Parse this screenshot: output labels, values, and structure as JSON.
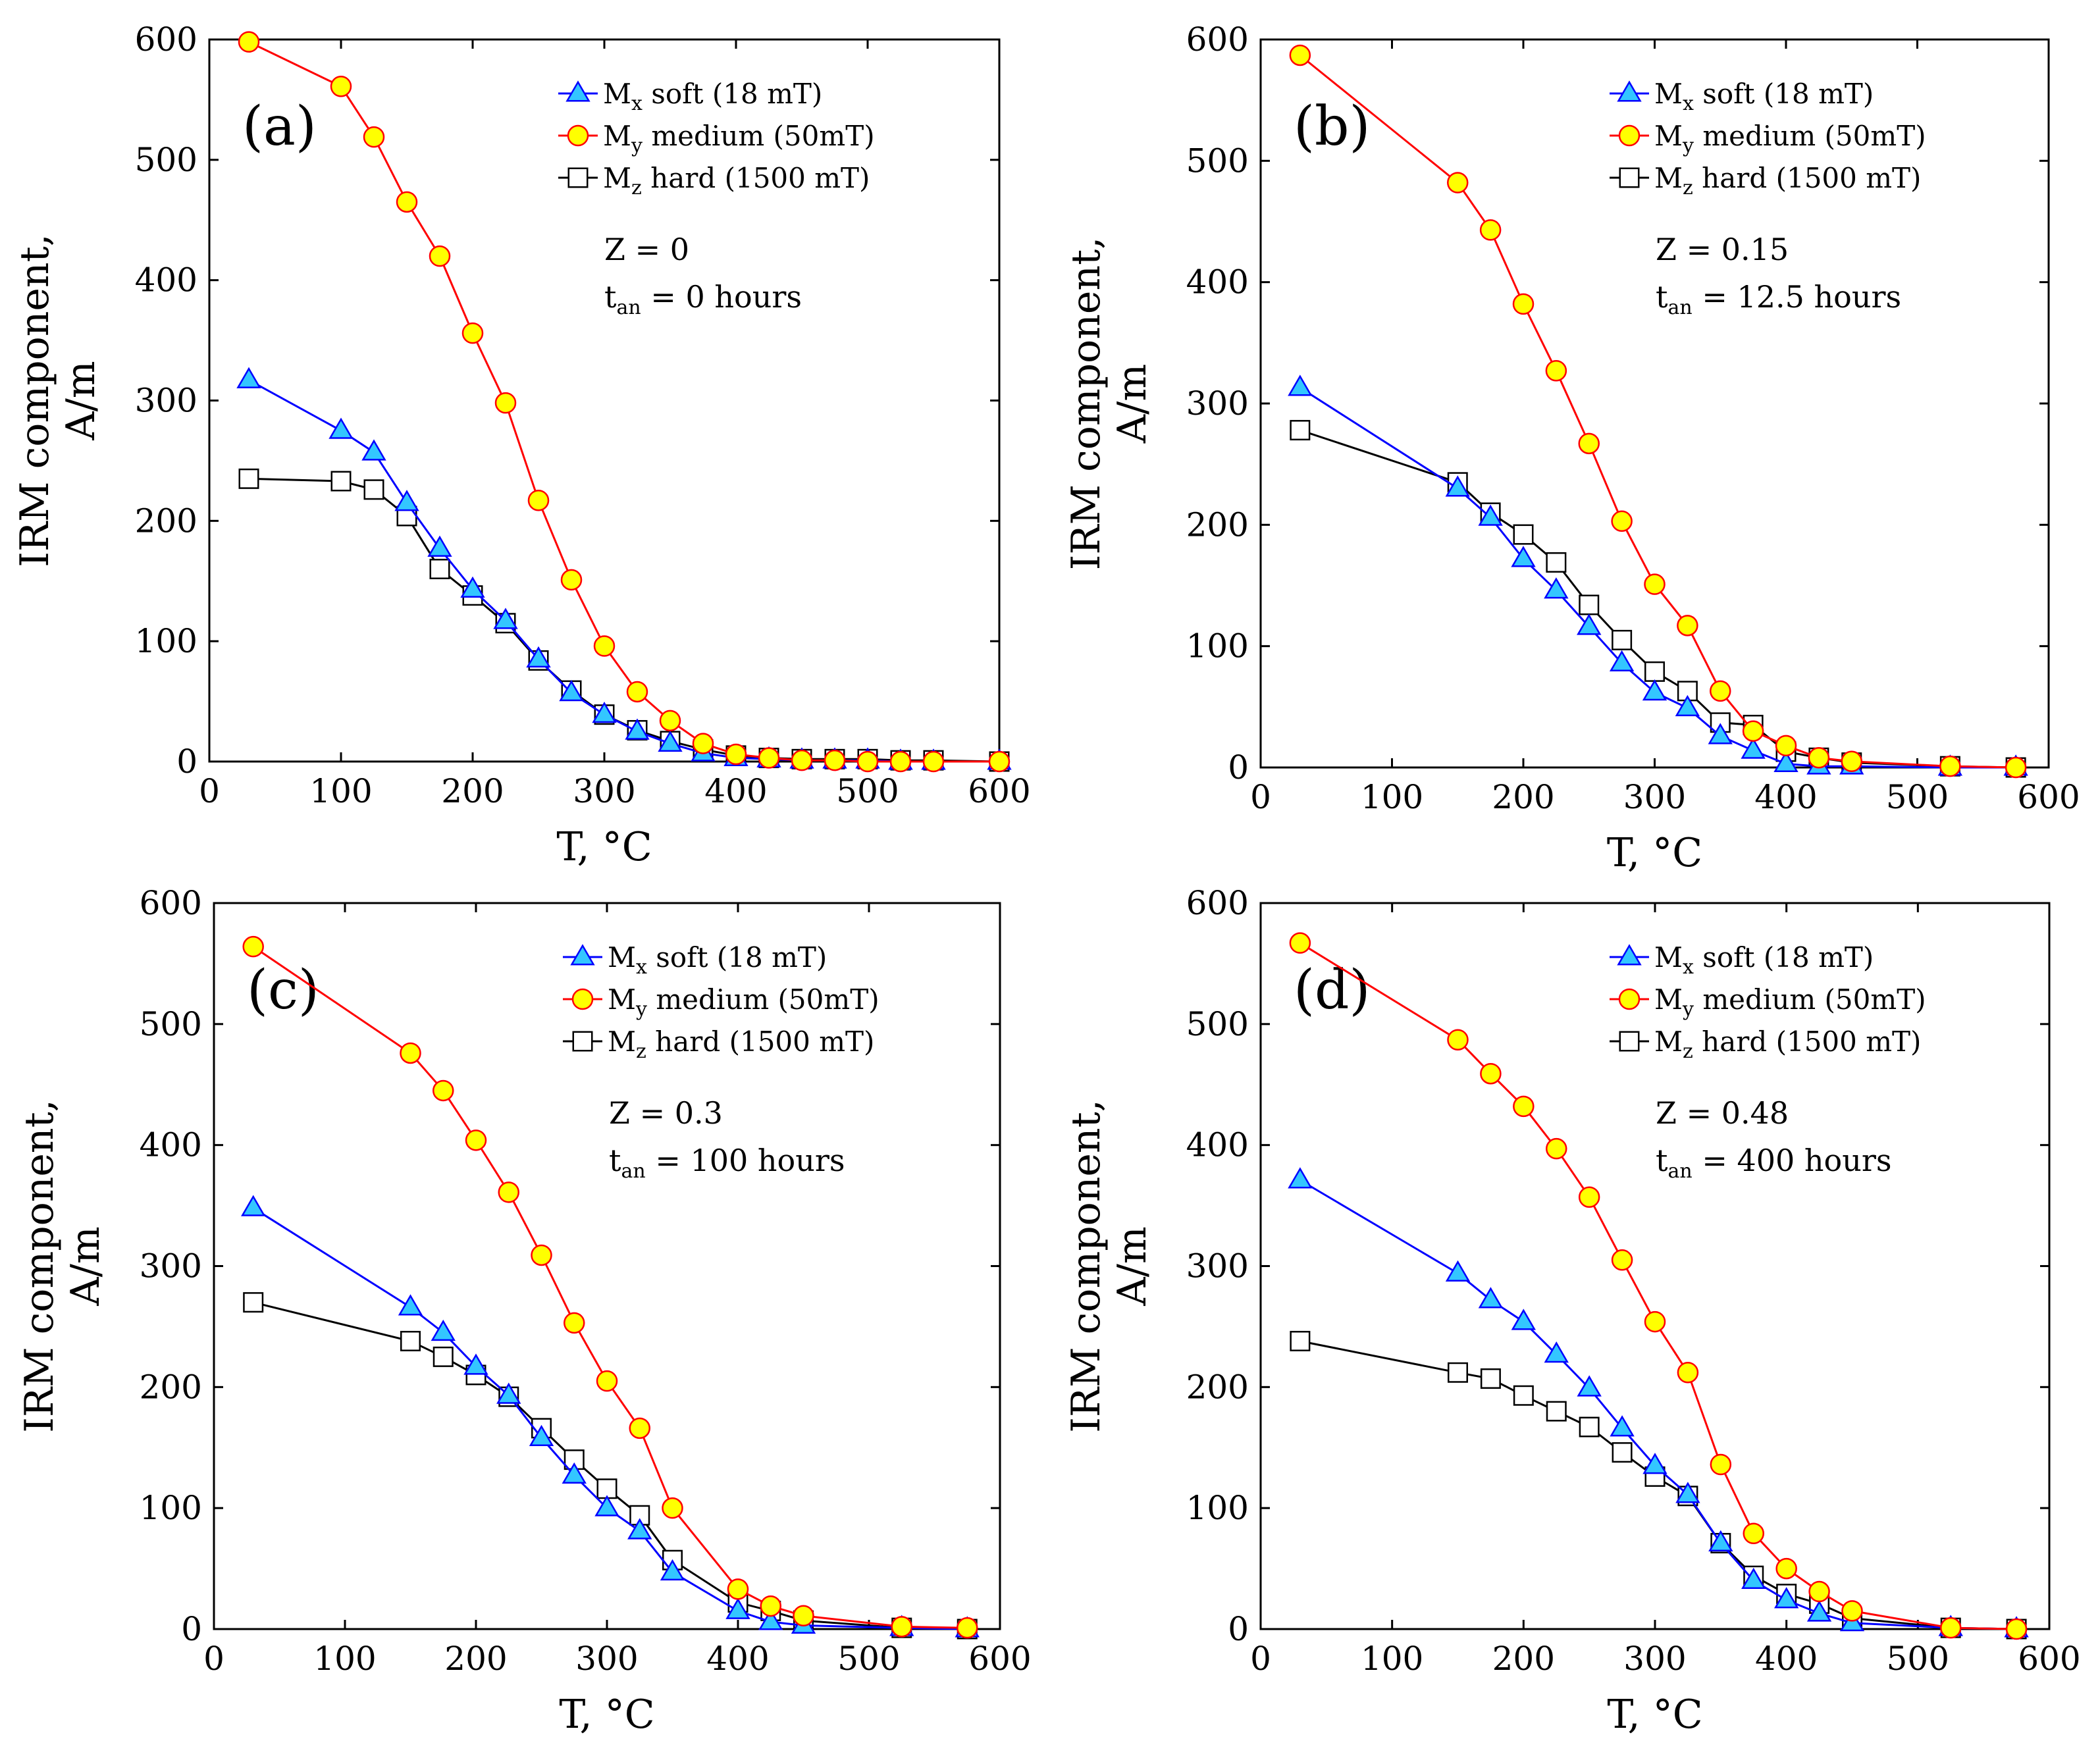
{
  "chart_data": [
    {
      "type": "line",
      "panel_label": "(a)",
      "xlabel": "T, °C",
      "ylabel_line1": "IRM component,",
      "ylabel_line2": "A/m",
      "xlim": [
        0,
        600
      ],
      "ylim": [
        0,
        600
      ],
      "xticks": [
        0,
        100,
        200,
        300,
        400,
        500,
        600
      ],
      "yticks": [
        0,
        100,
        200,
        300,
        400,
        500,
        600
      ],
      "annotation": {
        "z_text": "Z = 0",
        "t_sym": "t",
        "t_sub": "an",
        "t_rest": " = 0 hours"
      },
      "legend_position": "top-right",
      "series": [
        {
          "name": "soft",
          "sym": "M",
          "sub": "x",
          "legend_rest": " soft (18 mT)",
          "marker": "triangle",
          "x": [
            30,
            100,
            125,
            150,
            175,
            200,
            225,
            250,
            275,
            300,
            325,
            350,
            375,
            400,
            425,
            450,
            475,
            500,
            525,
            550,
            600
          ],
          "y": [
            317,
            275,
            257,
            215,
            177,
            143,
            117,
            85,
            57,
            39,
            25,
            15,
            7,
            3,
            2,
            1,
            1,
            1,
            0,
            0,
            0
          ]
        },
        {
          "name": "medium",
          "sym": "M",
          "sub": "y",
          "legend_rest": " medium (50mT)",
          "marker": "circle",
          "x": [
            30,
            100,
            125,
            150,
            175,
            200,
            225,
            250,
            275,
            300,
            325,
            350,
            375,
            400,
            425,
            450,
            475,
            500,
            525,
            550,
            600
          ],
          "y": [
            598,
            561,
            519,
            465,
            420,
            356,
            298,
            217,
            151,
            96,
            58,
            34,
            15,
            6,
            3,
            1,
            1,
            0,
            0,
            0,
            0
          ]
        },
        {
          "name": "hard",
          "sym": "M",
          "sub": "z",
          "legend_rest": " hard (1500 mT)",
          "marker": "square",
          "x": [
            30,
            100,
            125,
            150,
            175,
            200,
            225,
            250,
            275,
            300,
            325,
            350,
            375,
            400,
            425,
            450,
            475,
            500,
            525,
            550,
            600
          ],
          "y": [
            235,
            233,
            226,
            204,
            160,
            138,
            115,
            84,
            59,
            39,
            26,
            17,
            10,
            5,
            3,
            2,
            2,
            2,
            1,
            1,
            0
          ]
        }
      ]
    },
    {
      "type": "line",
      "panel_label": "(b)",
      "xlabel": "T, °C",
      "ylabel_line1": "IRM component,",
      "ylabel_line2": "A/m",
      "xlim": [
        0,
        600
      ],
      "ylim": [
        0,
        600
      ],
      "xticks": [
        0,
        100,
        200,
        300,
        400,
        500,
        600
      ],
      "yticks": [
        0,
        100,
        200,
        300,
        400,
        500,
        600
      ],
      "annotation": {
        "z_text": "Z = 0.15",
        "t_sym": "t",
        "t_sub": "an",
        "t_rest": " = 12.5 hours"
      },
      "legend_position": "top-right",
      "series": [
        {
          "name": "soft",
          "sym": "M",
          "sub": "x",
          "legend_rest": " soft (18 mT)",
          "marker": "triangle",
          "x": [
            30,
            150,
            175,
            200,
            225,
            250,
            275,
            300,
            325,
            350,
            375,
            400,
            425,
            450,
            525,
            575
          ],
          "y": [
            313,
            230,
            206,
            172,
            146,
            116,
            86,
            62,
            49,
            26,
            14,
            3,
            1,
            1,
            0,
            0
          ]
        },
        {
          "name": "medium",
          "sym": "M",
          "sub": "y",
          "legend_rest": " medium (50mT)",
          "marker": "circle",
          "x": [
            30,
            150,
            175,
            200,
            225,
            250,
            275,
            300,
            325,
            350,
            375,
            400,
            425,
            450,
            525,
            575
          ],
          "y": [
            587,
            482,
            443,
            382,
            327,
            267,
            203,
            151,
            117,
            63,
            30,
            18,
            8,
            5,
            1,
            0
          ]
        },
        {
          "name": "hard",
          "sym": "M",
          "sub": "z",
          "legend_rest": " hard (1500 mT)",
          "marker": "square",
          "x": [
            30,
            150,
            175,
            200,
            225,
            250,
            275,
            300,
            325,
            350,
            375,
            400,
            425,
            450,
            525,
            575
          ],
          "y": [
            278,
            235,
            210,
            192,
            169,
            134,
            105,
            79,
            63,
            37,
            35,
            13,
            8,
            4,
            1,
            0
          ]
        }
      ]
    },
    {
      "type": "line",
      "panel_label": "(c)",
      "xlabel": "T, °C",
      "ylabel_line1": "IRM component,",
      "ylabel_line2": "A/m",
      "xlim": [
        0,
        600
      ],
      "ylim": [
        0,
        600
      ],
      "xticks": [
        0,
        100,
        200,
        300,
        400,
        500,
        600
      ],
      "yticks": [
        0,
        100,
        200,
        300,
        400,
        500,
        600
      ],
      "annotation": {
        "z_text": "Z = 0.3",
        "t_sym": "t",
        "t_sub": "an",
        "t_rest": " = 100 hours"
      },
      "legend_position": "top-right",
      "series": [
        {
          "name": "soft",
          "sym": "M",
          "sub": "x",
          "legend_rest": " soft (18 mT)",
          "marker": "triangle",
          "x": [
            30,
            150,
            175,
            200,
            225,
            250,
            275,
            300,
            325,
            350,
            400,
            425,
            450,
            525,
            575
          ],
          "y": [
            348,
            266,
            245,
            217,
            193,
            158,
            127,
            100,
            81,
            47,
            15,
            6,
            3,
            1,
            0
          ]
        },
        {
          "name": "medium",
          "sym": "M",
          "sub": "y",
          "legend_rest": " medium (50mT)",
          "marker": "circle",
          "x": [
            30,
            150,
            175,
            200,
            225,
            250,
            275,
            300,
            325,
            350,
            400,
            425,
            450,
            525,
            575
          ],
          "y": [
            564,
            476,
            445,
            404,
            361,
            309,
            253,
            205,
            166,
            100,
            33,
            19,
            11,
            2,
            1
          ]
        },
        {
          "name": "hard",
          "sym": "M",
          "sub": "z",
          "legend_rest": " hard (1500 mT)",
          "marker": "square",
          "x": [
            30,
            150,
            175,
            200,
            225,
            250,
            275,
            300,
            325,
            350,
            400,
            425,
            450,
            525,
            575
          ],
          "y": [
            270,
            238,
            225,
            210,
            192,
            166,
            140,
            116,
            94,
            57,
            22,
            15,
            7,
            1,
            0
          ]
        }
      ]
    },
    {
      "type": "line",
      "panel_label": "(d)",
      "xlabel": "T, °C",
      "ylabel_line1": "IRM component,",
      "ylabel_line2": "A/m",
      "xlim": [
        0,
        600
      ],
      "ylim": [
        0,
        600
      ],
      "xticks": [
        0,
        100,
        200,
        300,
        400,
        500,
        600
      ],
      "yticks": [
        0,
        100,
        200,
        300,
        400,
        500,
        600
      ],
      "annotation": {
        "z_text": "Z = 0.48",
        "t_sym": "t",
        "t_sub": "an",
        "t_rest": " = 400 hours"
      },
      "legend_position": "top-right",
      "series": [
        {
          "name": "soft",
          "sym": "M",
          "sub": "x",
          "legend_rest": " soft (18 mT)",
          "marker": "triangle",
          "x": [
            30,
            150,
            175,
            200,
            225,
            250,
            275,
            300,
            325,
            350,
            375,
            400,
            425,
            450,
            525,
            575
          ],
          "y": [
            371,
            294,
            272,
            254,
            227,
            199,
            166,
            135,
            111,
            71,
            40,
            24,
            13,
            5,
            1,
            0
          ]
        },
        {
          "name": "medium",
          "sym": "M",
          "sub": "y",
          "legend_rest": " medium (50mT)",
          "marker": "circle",
          "x": [
            30,
            150,
            175,
            200,
            225,
            250,
            275,
            300,
            325,
            350,
            375,
            400,
            425,
            450,
            525,
            575
          ],
          "y": [
            567,
            487,
            459,
            432,
            397,
            357,
            305,
            254,
            212,
            136,
            79,
            50,
            31,
            15,
            1,
            0
          ]
        },
        {
          "name": "hard",
          "sym": "M",
          "sub": "z",
          "legend_rest": " hard (1500 mT)",
          "marker": "square",
          "x": [
            30,
            150,
            175,
            200,
            225,
            250,
            275,
            300,
            325,
            350,
            375,
            400,
            425,
            450,
            525,
            575
          ],
          "y": [
            238,
            212,
            207,
            193,
            180,
            167,
            146,
            126,
            110,
            71,
            44,
            29,
            21,
            9,
            1,
            0
          ]
        }
      ]
    }
  ],
  "colors": {
    "soft_line": "#0000ff",
    "soft_fill": "#33c6ff",
    "medium_line": "#ff0000",
    "medium_fill": "#ffff00",
    "hard_line": "#000000",
    "hard_fill": "#ffffff"
  }
}
